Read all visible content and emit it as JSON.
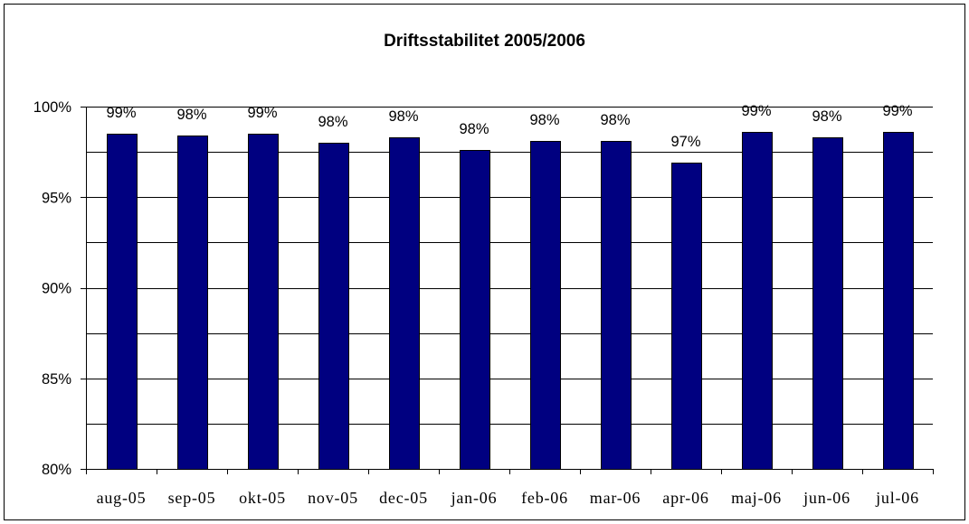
{
  "chart_data": {
    "type": "bar",
    "title": "Driftsstabilitet 2005/2006",
    "xlabel": "",
    "ylabel": "",
    "categories": [
      "aug-05",
      "sep-05",
      "okt-05",
      "nov-05",
      "dec-05",
      "jan-06",
      "feb-06",
      "mar-06",
      "apr-06",
      "maj-06",
      "jun-06",
      "jul-06"
    ],
    "series": [
      {
        "values": [
          98.5,
          98.4,
          98.5,
          98.0,
          98.3,
          97.6,
          98.1,
          98.1,
          96.9,
          98.6,
          98.3,
          98.6
        ],
        "data_labels": [
          "99%",
          "98%",
          "99%",
          "98%",
          "98%",
          "98%",
          "98%",
          "98%",
          "97%",
          "99%",
          "98%",
          "99%"
        ]
      }
    ],
    "ylim": [
      80,
      100
    ],
    "y_ticks": [
      100,
      95,
      90,
      85,
      80
    ],
    "y_tick_labels": [
      "100%",
      "95%",
      "90%",
      "85%",
      "80%"
    ],
    "grid": true,
    "grid_step": 2.5,
    "colors": {
      "bar_fill": "#000080",
      "bar_stroke": "#000000"
    }
  }
}
